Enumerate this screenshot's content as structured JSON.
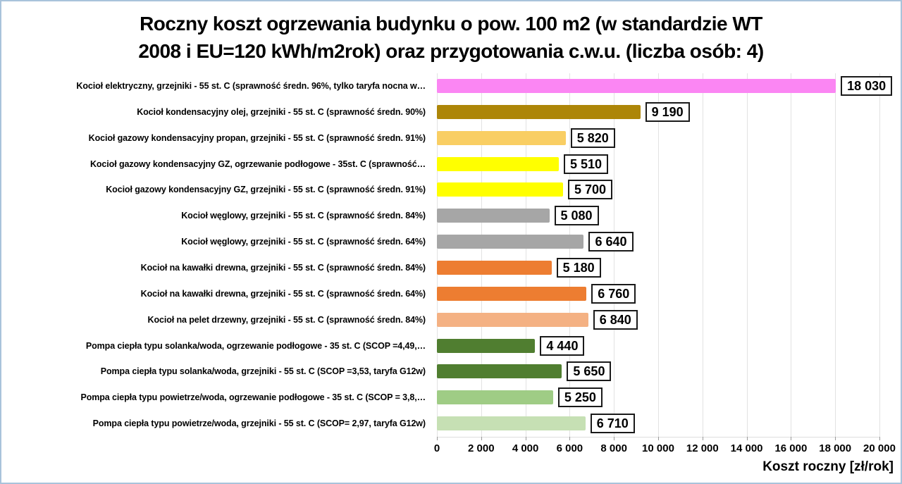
{
  "title": {
    "lines": [
      "Roczny koszt ogrzewania budynku  o pow. 100 m2 (w standardzie WT",
      "2008 i EU=120 kWh/m2rok) oraz przygotowania c.w.u. (liczba osób: 4)"
    ]
  },
  "chart_data": {
    "type": "bar",
    "orientation": "horizontal",
    "title": "Roczny koszt ogrzewania budynku o pow. 100 m2 (w standardzie WT 2008 i EU=120 kWh/m2rok) oraz przygotowania c.w.u. (liczba osób: 4)",
    "xlabel": "Koszt roczny [zł/rok]",
    "ylabel": "",
    "xlim": [
      0,
      20000
    ],
    "grid": true,
    "legend": "none",
    "x_ticks": [
      "0",
      "2 000",
      "4 000",
      "6 000",
      "8 000",
      "10 000",
      "12 000",
      "14 000",
      "16 000",
      "18 000",
      "20 000"
    ],
    "categories": [
      "Kocioł  elektryczny,  grzejniki - 55 st. C  (sprawność średn. 96%, tylko taryfa nocna w…",
      "Kocioł  kondensacyjny olej,  grzejniki - 55 st. C   (sprawność średn. 90%)",
      "Kocioł gazowy kondensacyjny propan, grzejniki - 55 st. C  (sprawność średn. 91%)",
      "Kocioł gazowy kondensacyjny GZ, ogrzewanie podłogowe - 35st. C   (sprawność…",
      "Kocioł gazowy kondensacyjny GZ, grzejniki - 55 st. C   (sprawność średn. 91%)",
      "Kocioł węglowy,  grzejniki - 55 st. C   (sprawność średn. 84%)",
      "Kocioł węglowy,  grzejniki - 55 st. C  (sprawność średn. 64%)",
      "Kocioł na kawałki drewna, grzejniki - 55 st. C (sprawność średn. 84%)",
      "Kocioł na kawałki drewna, grzejniki - 55 st. C  (sprawność średn. 64%)",
      "Kocioł na pelet drzewny, grzejniki - 55 st. C (sprawność średn. 84%)",
      "Pompa ciepła typu solanka/woda, ogrzewanie podłogowe - 35 st. C  (SCOP =4,49,…",
      "Pompa ciepła typu solanka/woda, grzejniki - 55 st. C (SCOP =3,53, taryfa G12w)",
      "Pompa ciepła typu powietrze/woda, ogrzewanie podłogowe - 35 st. C (SCOP = 3,8,…",
      "Pompa ciepła typu powietrze/woda, grzejniki - 55 st. C (SCOP= 2,97, taryfa G12w)"
    ],
    "values": [
      18030,
      9190,
      5820,
      5510,
      5700,
      5080,
      6640,
      5180,
      6760,
      6840,
      4440,
      5650,
      5250,
      6710
    ],
    "value_labels": [
      "18 030",
      "9 190",
      "5 820",
      "5 510",
      "5 700",
      "5 080",
      "6 640",
      "5 180",
      "6 760",
      "6 840",
      "4 440",
      "5 650",
      "5 250",
      "6 710"
    ],
    "bar_colors": [
      "#FB86F3",
      "#AD8608",
      "#F9CE63",
      "#FFFF00",
      "#FFFF00",
      "#A6A6A6",
      "#A6A6A6",
      "#ED7D31",
      "#ED7D31",
      "#F4B183",
      "#507E30",
      "#507E30",
      "#9FCC85",
      "#C6E0B4"
    ]
  },
  "colors": {
    "frame_border": "#A9C3DB",
    "gridline": "#E2E2E2",
    "value_box_border": "#1A1A1A",
    "value_box_fill": "#FFFFFF",
    "text": "#000000"
  }
}
